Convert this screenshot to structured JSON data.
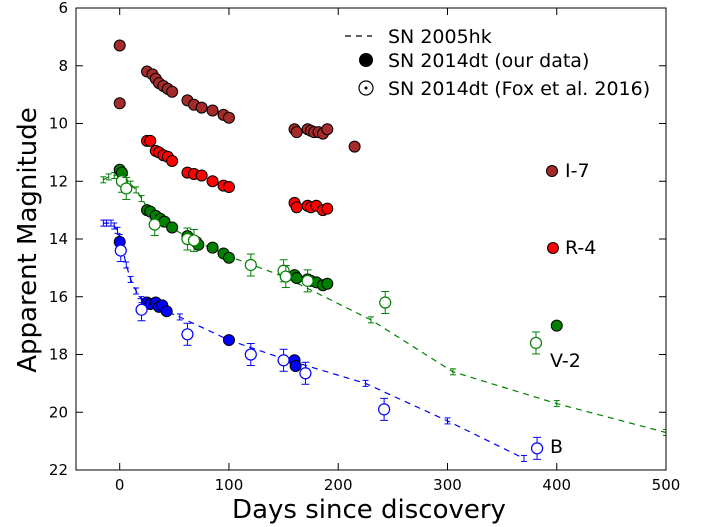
{
  "chart_data": {
    "type": "scatter",
    "title": "",
    "xlabel": "Days since discovery",
    "ylabel": "Apparent Magnitude",
    "xlim": [
      -40,
      500
    ],
    "ylim": [
      22,
      6
    ],
    "y_inverted": true,
    "x_ticks": [
      0,
      100,
      200,
      300,
      400,
      500
    ],
    "y_ticks": [
      6,
      8,
      10,
      12,
      14,
      16,
      18,
      20,
      22
    ],
    "grid": false,
    "legend_position": "top-right",
    "legend": [
      {
        "label": "SN 2005hk",
        "marker": "dashed-line"
      },
      {
        "label": "SN 2014dt (our data)",
        "marker": "filled-circle"
      },
      {
        "label": "SN 2014dt (Fox et al. 2016)",
        "marker": "open-circle"
      }
    ],
    "band_labels": [
      {
        "text": "I-7",
        "color": "#a52a2a",
        "x": 398,
        "y": 11.7
      },
      {
        "text": "R-4",
        "color": "#ff0000",
        "x": 398,
        "y": 14.4
      },
      {
        "text": "V-2",
        "color": "#008000",
        "x": 398,
        "y": 17.0
      },
      {
        "text": "B",
        "color": "#0000ff",
        "x": 398,
        "y": 21.2
      }
    ],
    "series": [
      {
        "band": "I",
        "source": "our data",
        "color": "#a52a2a",
        "marker": "filled",
        "x": [
          0,
          0,
          25,
          30,
          33,
          36,
          40,
          44,
          48,
          62,
          68,
          75,
          85,
          95,
          100,
          160,
          162,
          172,
          175,
          178,
          182,
          186,
          190,
          215
        ],
        "y": [
          7.3,
          9.3,
          8.2,
          8.3,
          8.45,
          8.6,
          8.7,
          8.8,
          8.9,
          9.2,
          9.35,
          9.45,
          9.55,
          9.7,
          9.8,
          10.2,
          10.3,
          10.2,
          10.25,
          10.3,
          10.3,
          10.35,
          10.2,
          10.8
        ]
      },
      {
        "band": "R",
        "source": "our data",
        "color": "#ff0000",
        "marker": "filled",
        "x": [
          25,
          28,
          33,
          36,
          40,
          44,
          48,
          62,
          68,
          75,
          85,
          95,
          100,
          160,
          162,
          172,
          175,
          180,
          186,
          190
        ],
        "y": [
          10.6,
          10.6,
          10.95,
          11.0,
          11.1,
          11.15,
          11.3,
          11.7,
          11.75,
          11.8,
          12.0,
          12.15,
          12.2,
          12.75,
          12.9,
          12.85,
          12.9,
          12.85,
          13.0,
          12.95
        ]
      },
      {
        "band": "V",
        "source": "our data",
        "color": "#008000",
        "marker": "filled",
        "x": [
          0,
          2,
          25,
          28,
          33,
          37,
          41,
          48,
          62,
          70,
          72,
          85,
          95,
          100,
          160,
          162,
          172,
          175,
          180,
          186,
          190,
          400
        ],
        "y": [
          11.6,
          11.7,
          13.0,
          13.05,
          13.2,
          13.3,
          13.4,
          13.6,
          13.9,
          14.1,
          14.2,
          14.3,
          14.5,
          14.65,
          15.25,
          15.35,
          15.4,
          15.45,
          15.5,
          15.6,
          15.55,
          17.0
        ]
      },
      {
        "band": "B",
        "source": "our data",
        "color": "#0000ff",
        "marker": "filled",
        "x": [
          0,
          25,
          28,
          33,
          36,
          39,
          43,
          100,
          160,
          161
        ],
        "y": [
          14.1,
          16.2,
          16.25,
          16.2,
          16.35,
          16.3,
          16.5,
          17.5,
          18.2,
          18.4
        ]
      },
      {
        "band": "V",
        "source": "Fox et al. 2016",
        "color": "#008000",
        "marker": "open",
        "x": [
          2,
          6,
          32,
          62,
          68,
          120,
          150,
          152,
          172,
          243,
          381
        ],
        "y": [
          12.0,
          12.25,
          13.5,
          14.0,
          14.05,
          14.9,
          15.1,
          15.3,
          15.45,
          16.2,
          17.6
        ]
      },
      {
        "band": "B",
        "source": "Fox et al. 2016",
        "color": "#0000ff",
        "marker": "open",
        "x": [
          1,
          20,
          62,
          120,
          150,
          170,
          242,
          382
        ],
        "y": [
          14.4,
          16.45,
          17.3,
          18.0,
          18.2,
          18.65,
          19.9,
          21.25
        ]
      },
      {
        "band": "V",
        "source": "SN 2005hk",
        "color": "#008000",
        "marker": "dashed-line",
        "x": [
          -15,
          -10,
          -5,
          0,
          5,
          10,
          15,
          20,
          30,
          60,
          100,
          150,
          230,
          305,
          400,
          500
        ],
        "y": [
          11.95,
          11.85,
          11.8,
          11.75,
          11.9,
          12.1,
          12.3,
          12.6,
          13.2,
          13.9,
          14.6,
          15.3,
          16.8,
          18.6,
          19.7,
          20.7
        ]
      },
      {
        "band": "B",
        "source": "SN 2005hk",
        "color": "#0000ff",
        "marker": "dashed-line",
        "x": [
          -15,
          -12,
          -8,
          -5,
          -2,
          0,
          3,
          6,
          10,
          15,
          20,
          30,
          55,
          100,
          150,
          225,
          300,
          370
        ],
        "y": [
          13.45,
          13.45,
          13.45,
          13.55,
          13.7,
          13.95,
          14.4,
          14.9,
          15.4,
          15.8,
          16.1,
          16.3,
          16.7,
          17.5,
          18.15,
          19.0,
          20.3,
          21.6
        ]
      }
    ]
  }
}
